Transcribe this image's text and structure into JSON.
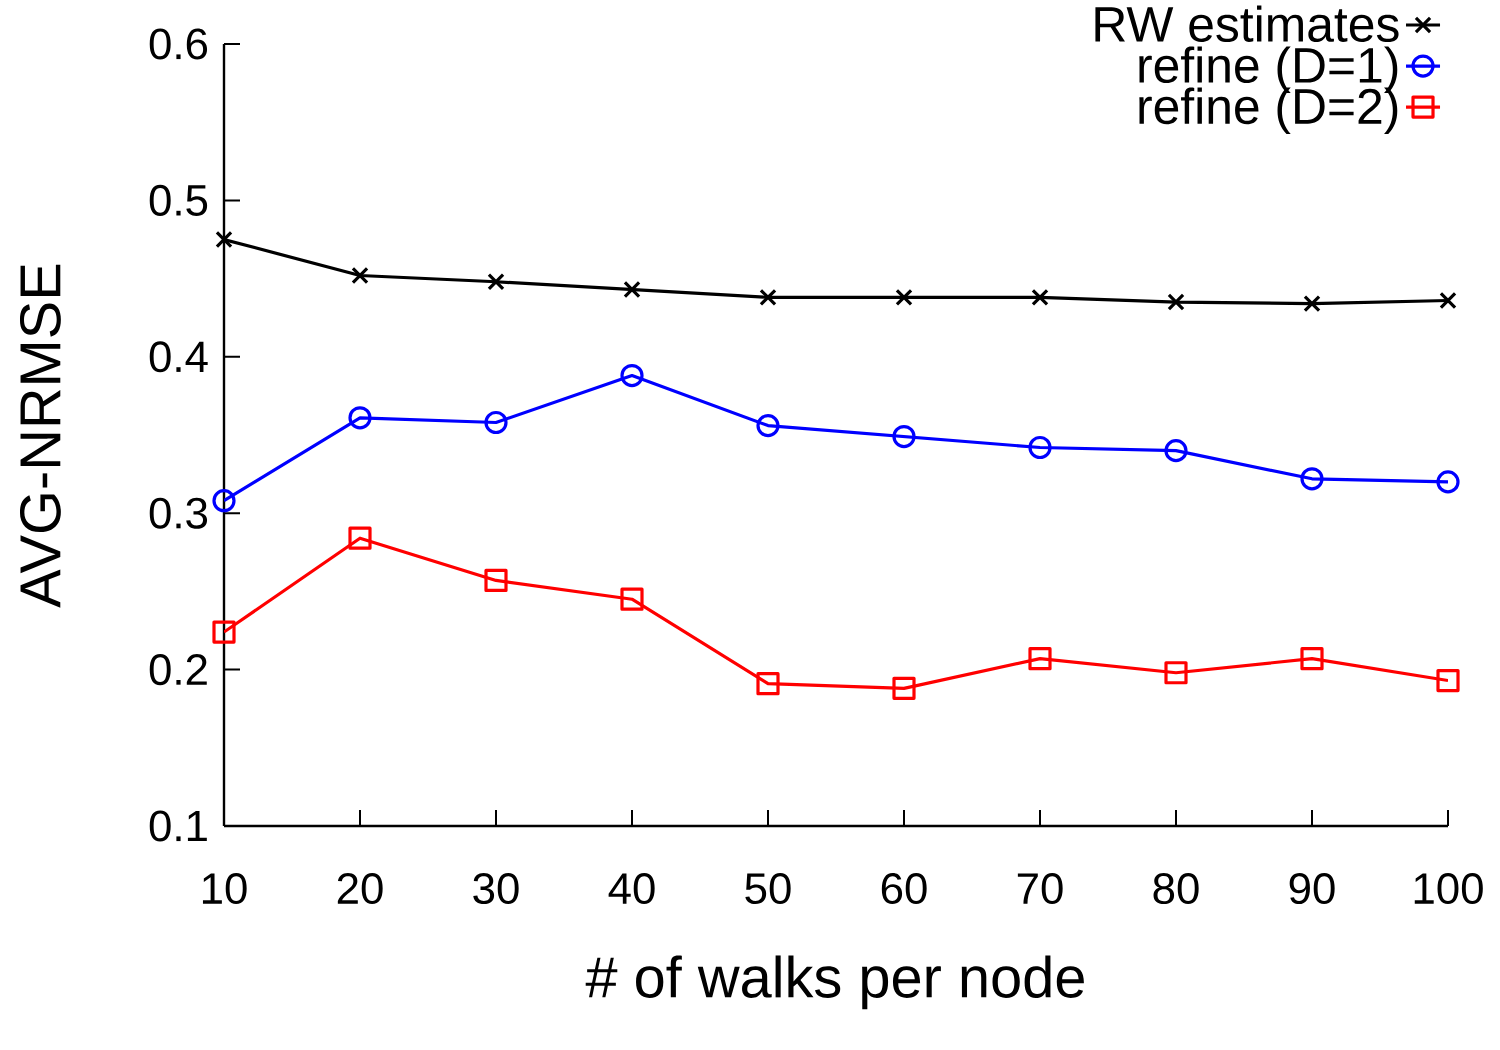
{
  "chart_data": {
    "type": "line",
    "xlabel": "# of walks per node",
    "ylabel": "AVG-NRMSE",
    "x": [
      10,
      20,
      30,
      40,
      50,
      60,
      70,
      80,
      90,
      100
    ],
    "series": [
      {
        "name": "RW estimates",
        "color": "#000000",
        "marker": "cross",
        "values": [
          0.475,
          0.452,
          0.448,
          0.443,
          0.438,
          0.438,
          0.438,
          0.435,
          0.434,
          0.436
        ]
      },
      {
        "name": "refine (D=1)",
        "color": "#0000ff",
        "marker": "circle",
        "values": [
          0.308,
          0.361,
          0.358,
          0.388,
          0.356,
          0.349,
          0.342,
          0.34,
          0.322,
          0.32
        ]
      },
      {
        "name": "refine (D=2)",
        "color": "#ff0000",
        "marker": "square",
        "values": [
          0.224,
          0.284,
          0.257,
          0.245,
          0.191,
          0.188,
          0.207,
          0.198,
          0.207,
          0.193
        ]
      }
    ],
    "xlim": [
      10,
      100
    ],
    "xticks": [
      10,
      20,
      30,
      40,
      50,
      60,
      70,
      80,
      90,
      100
    ],
    "ylim": [
      0.1,
      0.6
    ],
    "yticks": [
      0.1,
      0.2,
      0.3,
      0.4,
      0.5,
      0.6
    ],
    "grid": false,
    "legend": "top right",
    "line_style": "solid"
  }
}
